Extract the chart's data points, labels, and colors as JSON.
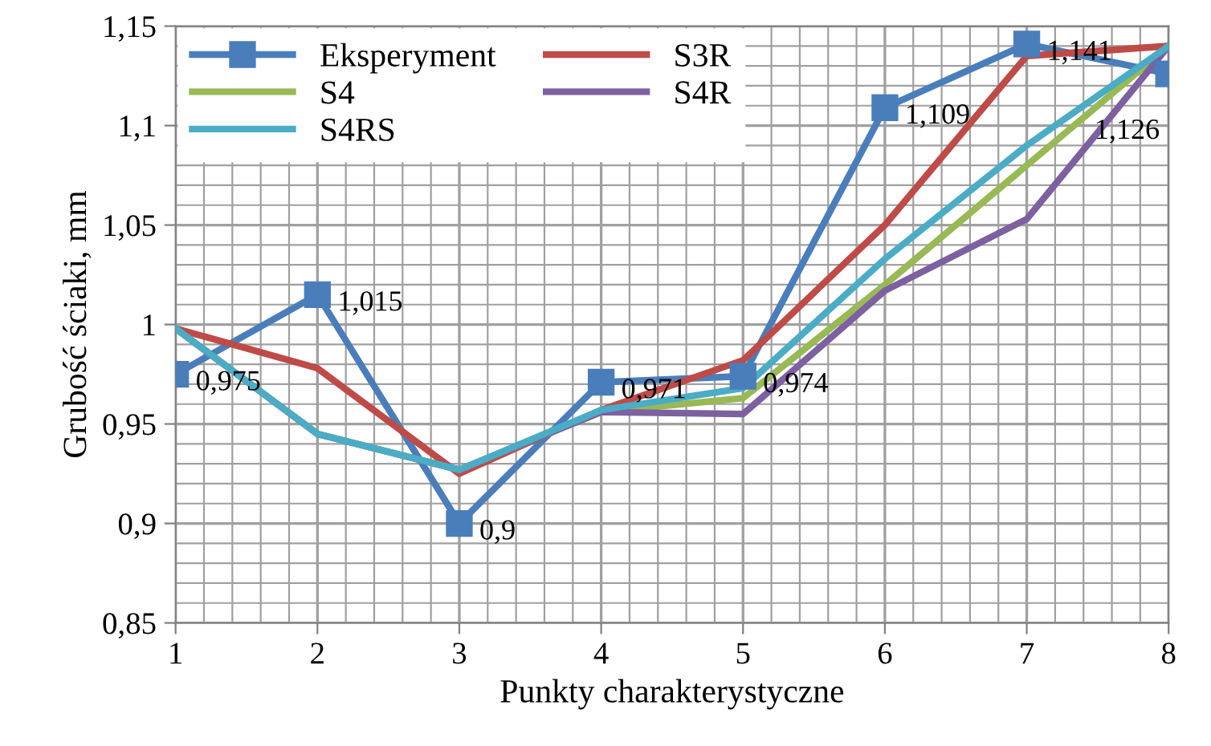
{
  "chart_data": {
    "type": "line",
    "xlabel": "Punkty charakterystyczne",
    "ylabel": "Grubość ściaki, mm",
    "categories": [
      "1",
      "2",
      "3",
      "4",
      "5",
      "6",
      "7",
      "8"
    ],
    "series": [
      {
        "name": "Eksperyment",
        "color": "#4a7ebb",
        "marker": "square",
        "values": [
          0.975,
          1.015,
          0.9,
          0.971,
          0.974,
          1.109,
          1.141,
          1.126
        ],
        "value_labels": [
          "0,975",
          "1,015",
          "0,9",
          "0,971",
          "0,974",
          "1,109",
          "1,141",
          "1,126"
        ]
      },
      {
        "name": "S3R",
        "color": "#be4b48",
        "marker": "none",
        "values": [
          0.998,
          0.978,
          0.925,
          0.957,
          0.982,
          1.05,
          1.135,
          1.14
        ]
      },
      {
        "name": "S4",
        "color": "#98b954",
        "marker": "none",
        "values": [
          0.998,
          0.945,
          0.927,
          0.956,
          0.963,
          1.02,
          1.08,
          1.14
        ]
      },
      {
        "name": "S4R",
        "color": "#7d60a0",
        "marker": "none",
        "values": [
          0.998,
          0.945,
          0.927,
          0.956,
          0.955,
          1.017,
          1.053,
          1.14
        ]
      },
      {
        "name": "S4RS",
        "color": "#4bacc6",
        "marker": "none",
        "values": [
          0.998,
          0.945,
          0.927,
          0.957,
          0.968,
          1.033,
          1.09,
          1.14
        ]
      }
    ],
    "ylim": [
      0.85,
      1.15
    ],
    "yticks": [
      {
        "value": 0.85,
        "label": "0,85"
      },
      {
        "value": 0.9,
        "label": "0,9"
      },
      {
        "value": 0.95,
        "label": "0,95"
      },
      1,
      {
        "value": 1.05,
        "label": "1,05"
      },
      {
        "value": 1.1,
        "label": "1,1"
      },
      {
        "value": 1.15,
        "label": "1,15"
      }
    ],
    "grid": true,
    "legend": "top left",
    "line_style": "solid"
  }
}
